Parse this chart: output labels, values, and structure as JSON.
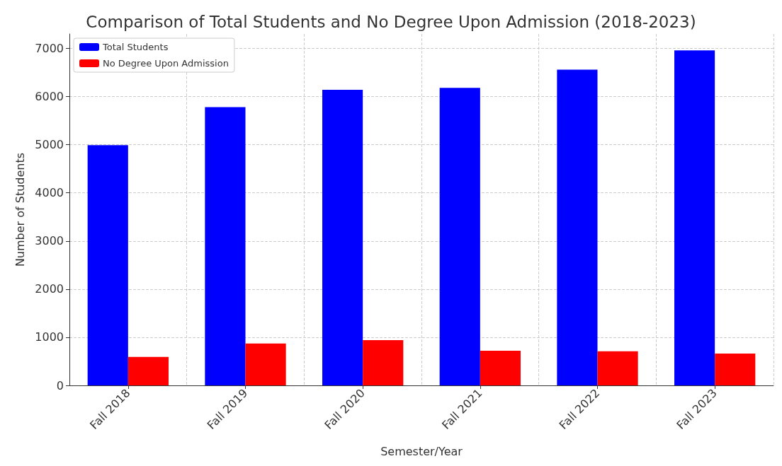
{
  "chart_data": {
    "type": "bar",
    "title": "Comparison of Total Students and No Degree Upon Admission (2018-2023)",
    "xlabel": "Semester/Year",
    "ylabel": "Number of Students",
    "categories": [
      "Fall 2018",
      "Fall 2019",
      "Fall 2020",
      "Fall 2021",
      "Fall 2022",
      "Fall 2023"
    ],
    "series": [
      {
        "name": "Total Students",
        "color": "#0000ff",
        "values": [
          4990,
          5780,
          6140,
          6180,
          6560,
          6960
        ]
      },
      {
        "name": "No Degree Upon Admission",
        "color": "#ff0000",
        "values": [
          590,
          870,
          940,
          720,
          710,
          660
        ]
      }
    ],
    "ylim": [
      0,
      7300
    ],
    "yticks": [
      0,
      1000,
      2000,
      3000,
      4000,
      5000,
      6000,
      7000
    ],
    "grid": true,
    "legend": "top left"
  }
}
